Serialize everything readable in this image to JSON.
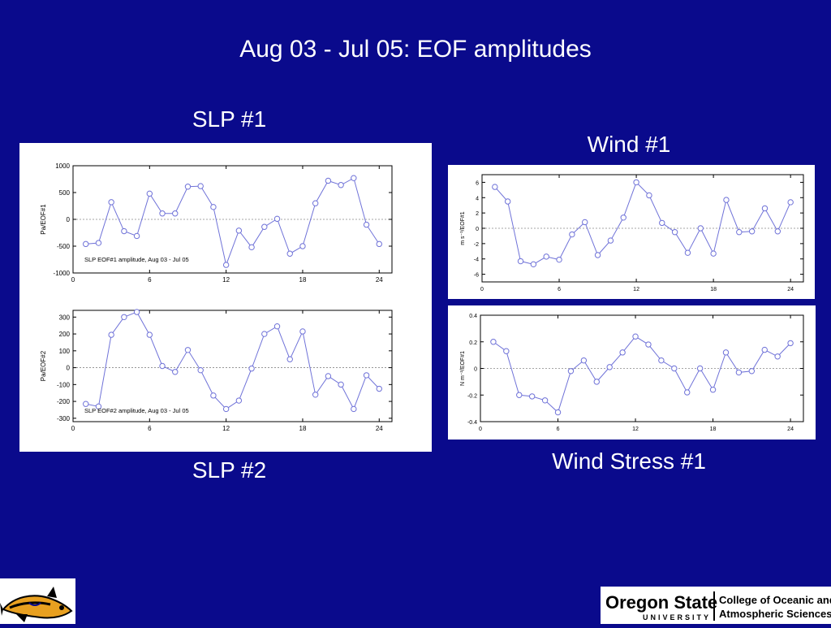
{
  "slide": {
    "title": "Aug 03 - Jul 05: EOF amplitudes",
    "labels": {
      "slp1": "SLP #1",
      "slp2": "SLP #2",
      "wind1": "Wind #1",
      "wstress1": "Wind Stress #1"
    }
  },
  "footer": {
    "osu_name": "Oregon State",
    "osu_sub": "UNIVERSITY",
    "college_line1": "College of Oceanic and",
    "college_line2": "Atmospheric Sciences"
  },
  "colors": {
    "background": "#0a0a8c",
    "series_line": "#6f72d8",
    "axis": "#000000",
    "zero_line": "#888888"
  },
  "chart_data": [
    {
      "type": "line",
      "ylabel": "Pa/EOF#1",
      "annotation": "SLP EOF#1 amplitude, Aug 03 - Jul 05",
      "xlim": [
        0,
        25
      ],
      "ylim": [
        -1000,
        1000
      ],
      "xticks": [
        0,
        6,
        12,
        18,
        24
      ],
      "yticks": [
        -1000,
        -500,
        0,
        500,
        1000
      ],
      "ytick_labels": [
        "-1000",
        "-500",
        "0",
        "500",
        "1000"
      ],
      "x": [
        1,
        2,
        3,
        4,
        5,
        6,
        7,
        8,
        9,
        10,
        11,
        12,
        13,
        14,
        15,
        16,
        17,
        18,
        19,
        20,
        21,
        22,
        23,
        24
      ],
      "y": [
        -460,
        -440,
        320,
        -220,
        -310,
        480,
        110,
        110,
        610,
        620,
        230,
        -850,
        -210,
        -520,
        -140,
        10,
        -640,
        -500,
        300,
        720,
        640,
        770,
        -100,
        -460
      ]
    },
    {
      "type": "line",
      "ylabel": "Pa/EOF#2",
      "annotation": "SLP EOF#2 amplitude, Aug 03 - Jul 05",
      "xlim": [
        0,
        25
      ],
      "ylim": [
        -320,
        340
      ],
      "xticks": [
        0,
        6,
        12,
        18,
        24
      ],
      "yticks": [
        -300,
        -200,
        -100,
        0,
        100,
        200,
        300
      ],
      "ytick_labels": [
        "-300",
        "-200",
        "-100",
        "0",
        "100",
        "200",
        "300"
      ],
      "x": [
        1,
        2,
        3,
        4,
        5,
        6,
        7,
        8,
        9,
        10,
        11,
        12,
        13,
        14,
        15,
        16,
        17,
        18,
        19,
        20,
        21,
        22,
        23,
        24
      ],
      "y": [
        -215,
        -230,
        195,
        300,
        330,
        195,
        10,
        -25,
        105,
        -15,
        -165,
        -245,
        -195,
        -5,
        200,
        245,
        50,
        215,
        -160,
        -50,
        -100,
        -245,
        -45,
        -125
      ]
    },
    {
      "type": "line",
      "ylabel": "m s⁻¹/EOF#1",
      "annotation": "",
      "xlim": [
        0,
        25
      ],
      "ylim": [
        -7,
        7
      ],
      "xticks": [
        0,
        6,
        12,
        18,
        24
      ],
      "yticks": [
        -6,
        -4,
        -2,
        0,
        2,
        4,
        6
      ],
      "ytick_labels": [
        "-6",
        "-4",
        "-2",
        "0",
        "2",
        "4",
        "6"
      ],
      "x": [
        1,
        2,
        3,
        4,
        5,
        6,
        7,
        8,
        9,
        10,
        11,
        12,
        13,
        14,
        15,
        16,
        17,
        18,
        19,
        20,
        21,
        22,
        23,
        24
      ],
      "y": [
        5.4,
        3.5,
        -4.3,
        -4.7,
        -3.7,
        -4.1,
        -0.8,
        0.8,
        -3.5,
        -1.6,
        1.4,
        6.0,
        4.3,
        0.7,
        -0.5,
        -3.2,
        0.0,
        -3.3,
        3.7,
        -0.5,
        -0.4,
        2.6,
        -0.4,
        3.4
      ]
    },
    {
      "type": "line",
      "ylabel": "N m⁻²/EOF#1",
      "annotation": "",
      "xlim": [
        0,
        25
      ],
      "ylim": [
        -0.4,
        0.4
      ],
      "xticks": [
        0,
        6,
        12,
        18,
        24
      ],
      "yticks": [
        -0.4,
        -0.2,
        0,
        0.2,
        0.4
      ],
      "ytick_labels": [
        "-0.4",
        "-0.2",
        "0",
        "0.2",
        "0.4"
      ],
      "x": [
        1,
        2,
        3,
        4,
        5,
        6,
        7,
        8,
        9,
        10,
        11,
        12,
        13,
        14,
        15,
        16,
        17,
        18,
        19,
        20,
        21,
        22,
        23,
        24
      ],
      "y": [
        0.2,
        0.13,
        -0.2,
        -0.21,
        -0.24,
        -0.33,
        -0.02,
        0.06,
        -0.1,
        0.01,
        0.12,
        0.24,
        0.18,
        0.06,
        0.0,
        -0.18,
        0.0,
        -0.16,
        0.12,
        -0.03,
        -0.02,
        0.14,
        0.09,
        0.19
      ]
    }
  ]
}
